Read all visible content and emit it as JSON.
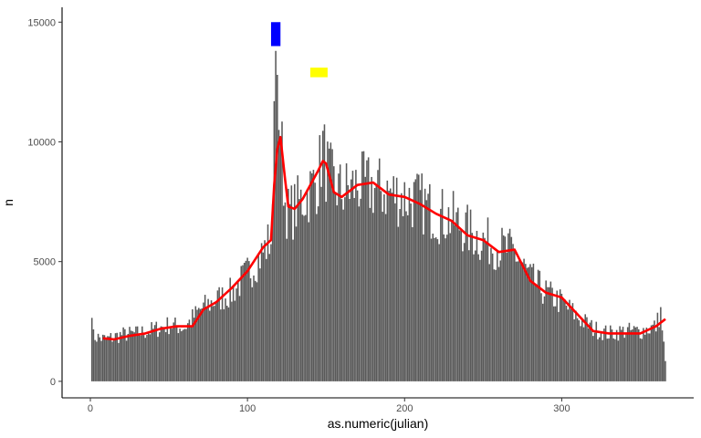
{
  "chart_data": {
    "type": "bar",
    "xlabel": "as.numeric(julian)",
    "ylabel": "n",
    "xlim": [
      -18,
      384
    ],
    "ylim": [
      -690,
      15620
    ],
    "x_ticks": [
      0,
      100,
      200,
      300
    ],
    "y_ticks": [
      0,
      5000,
      10000,
      15000
    ],
    "x_tick_labels": [
      "0",
      "100",
      "200",
      "300"
    ],
    "y_tick_labels": [
      "0",
      "5000",
      "10000",
      "15000"
    ],
    "grid": false,
    "legend": "none",
    "bar_color": "#595959",
    "smooth_color": "#ff0000",
    "daily_counts_note": "one bar per day, x = 1..366",
    "profile_anchors": [
      [
        1,
        1900
      ],
      [
        10,
        1750
      ],
      [
        20,
        1950
      ],
      [
        30,
        2000
      ],
      [
        40,
        2150
      ],
      [
        50,
        2350
      ],
      [
        60,
        2250
      ],
      [
        70,
        3000
      ],
      [
        80,
        3400
      ],
      [
        90,
        3700
      ],
      [
        100,
        4500
      ],
      [
        110,
        5400
      ],
      [
        115,
        6000
      ],
      [
        116,
        7400
      ],
      [
        117,
        11700
      ],
      [
        118,
        13800
      ],
      [
        119,
        12800
      ],
      [
        120,
        10500
      ],
      [
        122,
        9500
      ],
      [
        124,
        7500
      ],
      [
        126,
        7000
      ],
      [
        130,
        7200
      ],
      [
        135,
        7600
      ],
      [
        140,
        8000
      ],
      [
        145,
        8500
      ],
      [
        148,
        9800
      ],
      [
        150,
        9000
      ],
      [
        152,
        8600
      ],
      [
        155,
        8200
      ],
      [
        160,
        7900
      ],
      [
        170,
        8200
      ],
      [
        180,
        8100
      ],
      [
        190,
        7900
      ],
      [
        200,
        7700
      ],
      [
        210,
        7500
      ],
      [
        220,
        7000
      ],
      [
        230,
        6800
      ],
      [
        240,
        6300
      ],
      [
        250,
        5900
      ],
      [
        260,
        5600
      ],
      [
        270,
        5400
      ],
      [
        280,
        4300
      ],
      [
        290,
        3700
      ],
      [
        300,
        3300
      ],
      [
        310,
        2700
      ],
      [
        320,
        2200
      ],
      [
        330,
        2000
      ],
      [
        340,
        2100
      ],
      [
        350,
        2100
      ],
      [
        360,
        2300
      ],
      [
        363,
        2900
      ],
      [
        366,
        800
      ]
    ],
    "smooth": {
      "x": [
        8,
        15,
        25,
        35,
        45,
        55,
        65,
        72,
        80,
        90,
        100,
        110,
        115,
        117,
        119,
        121,
        124,
        126,
        130,
        135,
        140,
        145,
        148,
        150,
        155,
        160,
        170,
        180,
        190,
        200,
        210,
        220,
        230,
        240,
        250,
        260,
        270,
        280,
        290,
        300,
        310,
        320,
        330,
        340,
        350,
        360,
        366
      ],
      "y": [
        1800,
        1750,
        1900,
        2000,
        2200,
        2300,
        2300,
        3000,
        3300,
        3900,
        4600,
        5600,
        5900,
        8200,
        9700,
        10200,
        8400,
        7300,
        7200,
        7600,
        8200,
        8800,
        9200,
        9100,
        7900,
        7700,
        8200,
        8300,
        7800,
        7700,
        7400,
        7000,
        6700,
        6100,
        5900,
        5400,
        5500,
        4200,
        3700,
        3500,
        2800,
        2100,
        2000,
        2000,
        2000,
        2300,
        2600
      ]
    },
    "annotations": [
      {
        "type": "rect",
        "xmin": 115,
        "xmax": 121,
        "ymin": 14000,
        "ymax": 15000,
        "color": "#0000ff"
      },
      {
        "type": "rect",
        "xmin": 140,
        "xmax": 151,
        "ymin": 12700,
        "ymax": 13100,
        "color": "#ffff00"
      }
    ]
  }
}
